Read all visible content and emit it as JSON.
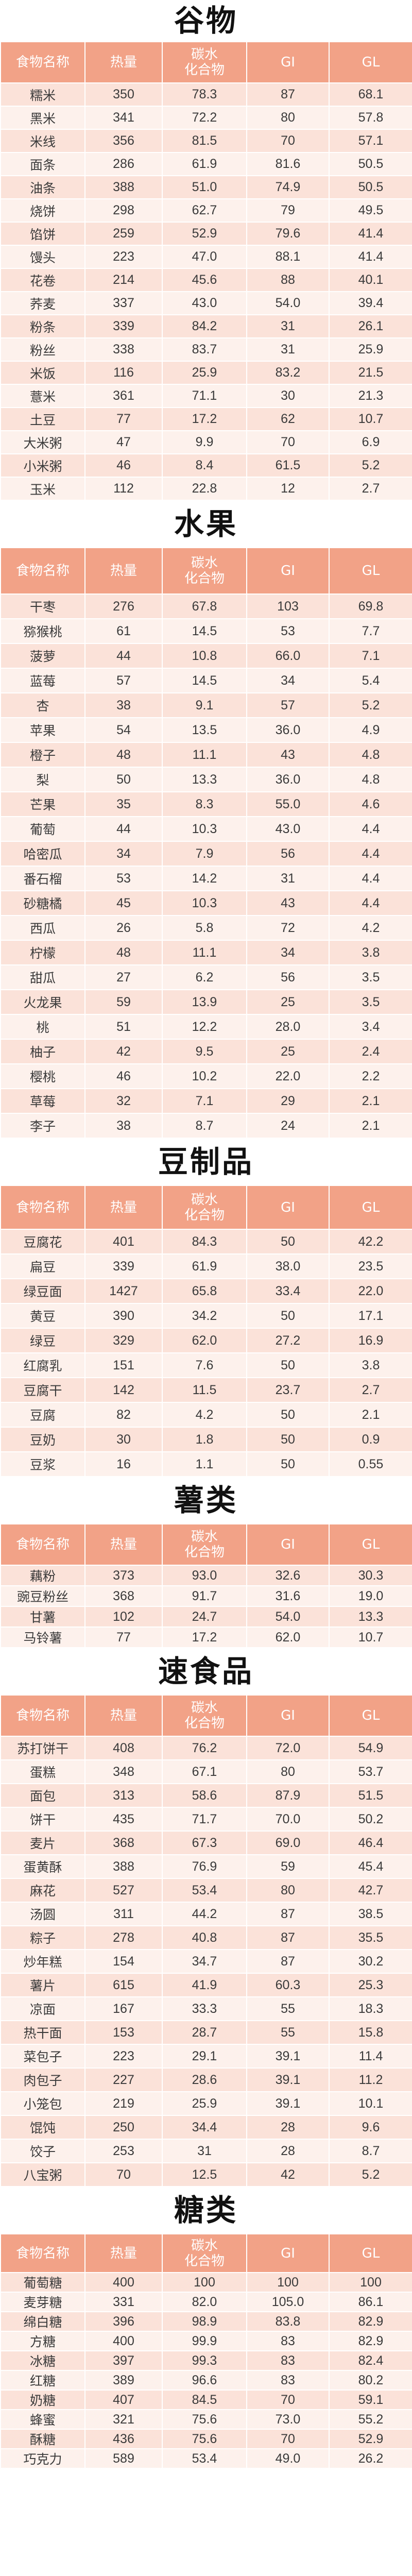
{
  "headers": [
    "食物名称",
    "热量",
    "碳水\n化合物",
    "GI",
    "GL"
  ],
  "sections": [
    {
      "title": "谷物",
      "rows": [
        [
          "糯米",
          "350",
          "78.3",
          "87",
          "68.1"
        ],
        [
          "黑米",
          "341",
          "72.2",
          "80",
          "57.8"
        ],
        [
          "米线",
          "356",
          "81.5",
          "70",
          "57.1"
        ],
        [
          "面条",
          "286",
          "61.9",
          "81.6",
          "50.5"
        ],
        [
          "油条",
          "388",
          "51.0",
          "74.9",
          "50.5"
        ],
        [
          "烧饼",
          "298",
          "62.7",
          "79",
          "49.5"
        ],
        [
          "馅饼",
          "259",
          "52.9",
          "79.6",
          "41.4"
        ],
        [
          "馒头",
          "223",
          "47.0",
          "88.1",
          "41.4"
        ],
        [
          "花卷",
          "214",
          "45.6",
          "88",
          "40.1"
        ],
        [
          "荞麦",
          "337",
          "43.0",
          "54.0",
          "39.4"
        ],
        [
          "粉条",
          "339",
          "84.2",
          "31",
          "26.1"
        ],
        [
          "粉丝",
          "338",
          "83.7",
          "31",
          "25.9"
        ],
        [
          "米饭",
          "116",
          "25.9",
          "83.2",
          "21.5"
        ],
        [
          "薏米",
          "361",
          "71.1",
          "30",
          "21.3"
        ],
        [
          "土豆",
          "77",
          "17.2",
          "62",
          "10.7"
        ],
        [
          "大米粥",
          "47",
          "9.9",
          "70",
          "6.9"
        ],
        [
          "小米粥",
          "46",
          "8.4",
          "61.5",
          "5.2"
        ],
        [
          "玉米",
          "112",
          "22.8",
          "12",
          "2.7"
        ]
      ]
    },
    {
      "title": "水果",
      "rows": [
        [
          "干枣",
          "276",
          "67.8",
          "103",
          "69.8"
        ],
        [
          "猕猴桃",
          "61",
          "14.5",
          "53",
          "7.7"
        ],
        [
          "菠萝",
          "44",
          "10.8",
          "66.0",
          "7.1"
        ],
        [
          "蓝莓",
          "57",
          "14.5",
          "34",
          "5.4"
        ],
        [
          "杏",
          "38",
          "9.1",
          "57",
          "5.2"
        ],
        [
          "苹果",
          "54",
          "13.5",
          "36.0",
          "4.9"
        ],
        [
          "橙子",
          "48",
          "11.1",
          "43",
          "4.8"
        ],
        [
          "梨",
          "50",
          "13.3",
          "36.0",
          "4.8"
        ],
        [
          "芒果",
          "35",
          "8.3",
          "55.0",
          "4.6"
        ],
        [
          "葡萄",
          "44",
          "10.3",
          "43.0",
          "4.4"
        ],
        [
          "哈密瓜",
          "34",
          "7.9",
          "56",
          "4.4"
        ],
        [
          "番石榴",
          "53",
          "14.2",
          "31",
          "4.4"
        ],
        [
          "砂糖橘",
          "45",
          "10.3",
          "43",
          "4.4"
        ],
        [
          "西瓜",
          "26",
          "5.8",
          "72",
          "4.2"
        ],
        [
          "柠檬",
          "48",
          "11.1",
          "34",
          "3.8"
        ],
        [
          "甜瓜",
          "27",
          "6.2",
          "56",
          "3.5"
        ],
        [
          "火龙果",
          "59",
          "13.9",
          "25",
          "3.5"
        ],
        [
          "桃",
          "51",
          "12.2",
          "28.0",
          "3.4"
        ],
        [
          "柚子",
          "42",
          "9.5",
          "25",
          "2.4"
        ],
        [
          "樱桃",
          "46",
          "10.2",
          "22.0",
          "2.2"
        ],
        [
          "草莓",
          "32",
          "7.1",
          "29",
          "2.1"
        ],
        [
          "李子",
          "38",
          "8.7",
          "24",
          "2.1"
        ]
      ]
    },
    {
      "title": "豆制品",
      "rows": [
        [
          "豆腐花",
          "401",
          "84.3",
          "50",
          "42.2"
        ],
        [
          "扁豆",
          "339",
          "61.9",
          "38.0",
          "23.5"
        ],
        [
          "绿豆面",
          "1427",
          "65.8",
          "33.4",
          "22.0"
        ],
        [
          "黄豆",
          "390",
          "34.2",
          "50",
          "17.1"
        ],
        [
          "绿豆",
          "329",
          "62.0",
          "27.2",
          "16.9"
        ],
        [
          "红腐乳",
          "151",
          "7.6",
          "50",
          "3.8"
        ],
        [
          "豆腐干",
          "142",
          "11.5",
          "23.7",
          "2.7"
        ],
        [
          "豆腐",
          "82",
          "4.2",
          "50",
          "2.1"
        ],
        [
          "豆奶",
          "30",
          "1.8",
          "50",
          "0.9"
        ],
        [
          "豆浆",
          "16",
          "1.1",
          "50",
          "0.55"
        ]
      ]
    },
    {
      "title": "薯类",
      "rows": [
        [
          "藕粉",
          "373",
          "93.0",
          "32.6",
          "30.3"
        ],
        [
          "豌豆粉丝",
          "368",
          "91.7",
          "31.6",
          "19.0"
        ],
        [
          "甘薯",
          "102",
          "24.7",
          "54.0",
          "13.3"
        ],
        [
          "马铃薯",
          "77",
          "17.2",
          "62.0",
          "10.7"
        ]
      ]
    },
    {
      "title": "速食品",
      "rows": [
        [
          "苏打饼干",
          "408",
          "76.2",
          "72.0",
          "54.9"
        ],
        [
          "蛋糕",
          "348",
          "67.1",
          "80",
          "53.7"
        ],
        [
          "面包",
          "313",
          "58.6",
          "87.9",
          "51.5"
        ],
        [
          "饼干",
          "435",
          "71.7",
          "70.0",
          "50.2"
        ],
        [
          "麦片",
          "368",
          "67.3",
          "69.0",
          "46.4"
        ],
        [
          "蛋黄酥",
          "388",
          "76.9",
          "59",
          "45.4"
        ],
        [
          "麻花",
          "527",
          "53.4",
          "80",
          "42.7"
        ],
        [
          "汤圆",
          "311",
          "44.2",
          "87",
          "38.5"
        ],
        [
          "粽子",
          "278",
          "40.8",
          "87",
          "35.5"
        ],
        [
          "炒年糕",
          "154",
          "34.7",
          "87",
          "30.2"
        ],
        [
          "薯片",
          "615",
          "41.9",
          "60.3",
          "25.3"
        ],
        [
          "凉面",
          "167",
          "33.3",
          "55",
          "18.3"
        ],
        [
          "热干面",
          "153",
          "28.7",
          "55",
          "15.8"
        ],
        [
          "菜包子",
          "223",
          "29.1",
          "39.1",
          "11.4"
        ],
        [
          "肉包子",
          "227",
          "28.6",
          "39.1",
          "11.2"
        ],
        [
          "小笼包",
          "219",
          "25.9",
          "39.1",
          "10.1"
        ],
        [
          "馄饨",
          "250",
          "34.4",
          "28",
          "9.6"
        ],
        [
          "饺子",
          "253",
          "31",
          "28",
          "8.7"
        ],
        [
          "八宝粥",
          "70",
          "12.5",
          "42",
          "5.2"
        ]
      ]
    },
    {
      "title": "糖类",
      "rows": [
        [
          "葡萄糖",
          "400",
          "100",
          "100",
          "100"
        ],
        [
          "麦芽糖",
          "331",
          "82.0",
          "105.0",
          "86.1"
        ],
        [
          "绵白糖",
          "396",
          "98.9",
          "83.8",
          "82.9"
        ],
        [
          "方糖",
          "400",
          "99.9",
          "83",
          "82.9"
        ],
        [
          "冰糖",
          "397",
          "99.3",
          "83",
          "82.4"
        ],
        [
          "红糖",
          "389",
          "96.6",
          "83",
          "80.2"
        ],
        [
          "奶糖",
          "407",
          "84.5",
          "70",
          "59.1"
        ],
        [
          "蜂蜜",
          "321",
          "75.6",
          "73.0",
          "55.2"
        ],
        [
          "酥糖",
          "436",
          "75.6",
          "70",
          "52.9"
        ],
        [
          "巧克力",
          "589",
          "53.4",
          "49.0",
          "26.2"
        ]
      ]
    }
  ]
}
